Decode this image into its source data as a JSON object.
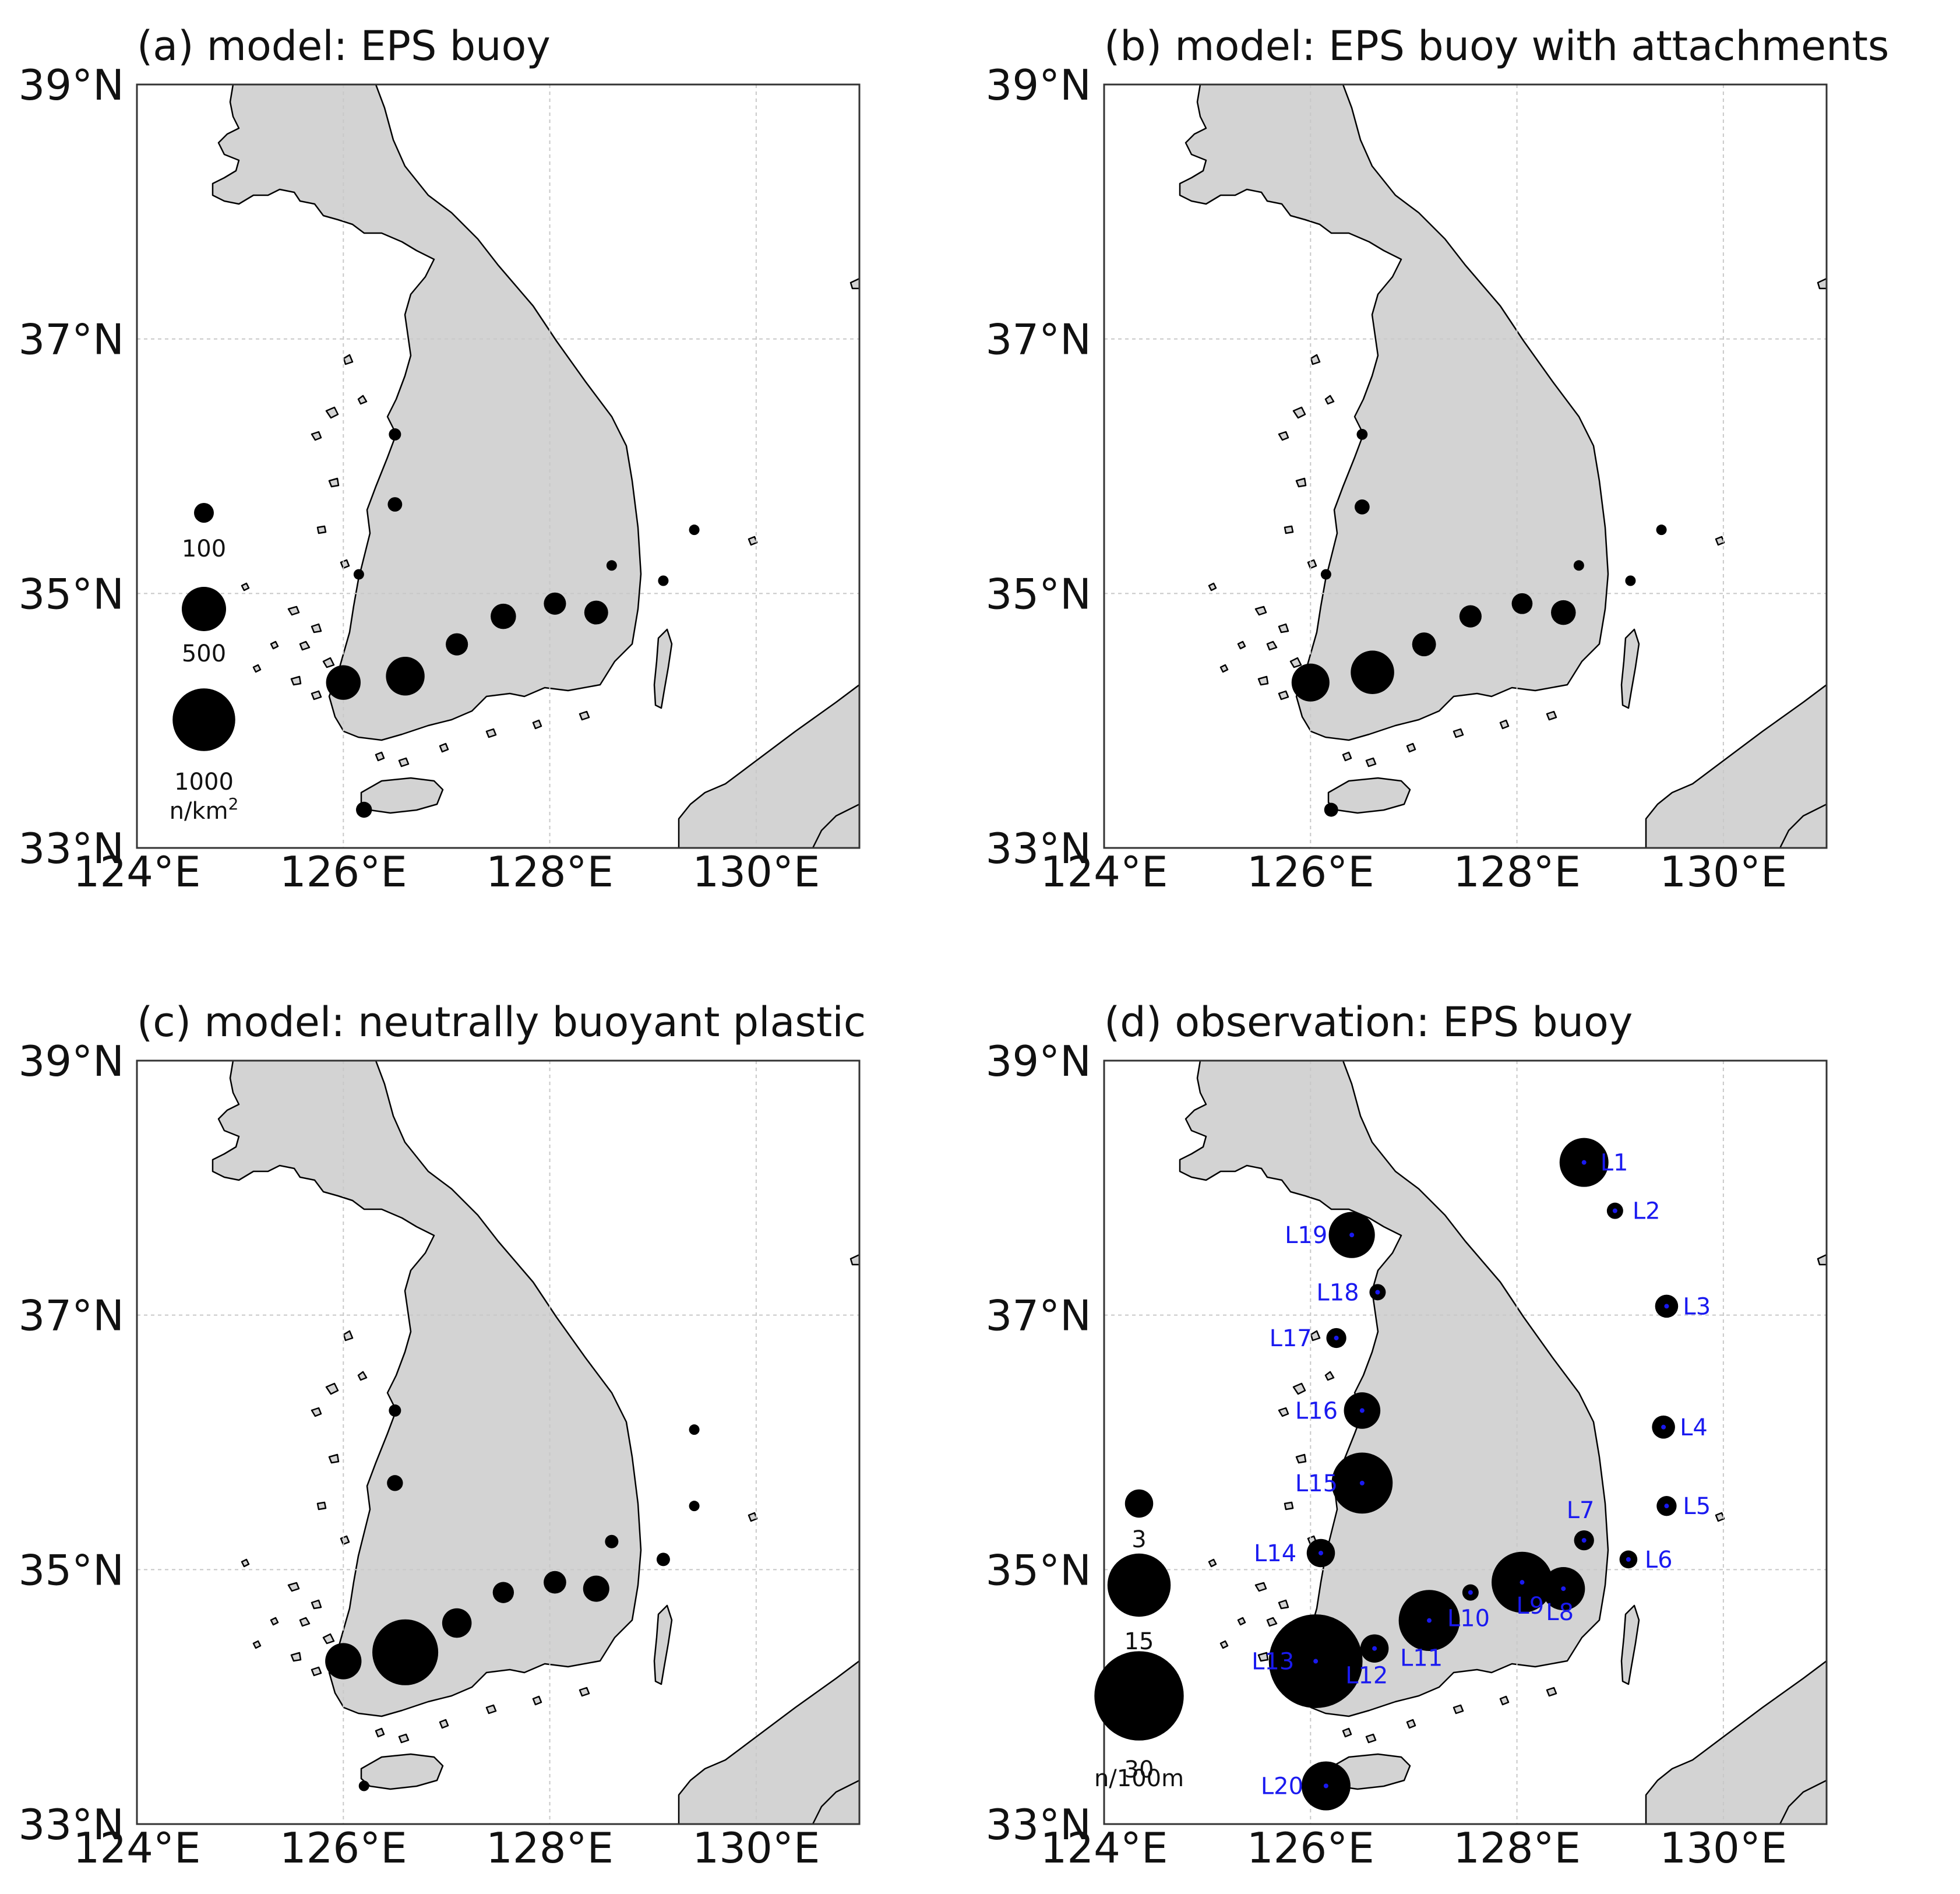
{
  "axes": {
    "lat_ticks": [
      "33°N",
      "35°N",
      "37°N",
      "39°N"
    ],
    "lon_ticks": [
      "124°E",
      "126°E",
      "128°E",
      "130°E"
    ],
    "lat_range": [
      33,
      39
    ],
    "lon_range": [
      124,
      131
    ],
    "grid": "dashed"
  },
  "colors": {
    "land": "#d3d3d3",
    "marker": "#000000",
    "site_label": "#1a1af0",
    "site_dot": "#1a1af0"
  },
  "chart_data": [
    {
      "type": "scatter",
      "panel": "a",
      "title": "(a) model: EPS buoy",
      "legend": {
        "unit": "n/km2",
        "unit_main": "n/km",
        "unit_sup": "2",
        "entries": [
          "100",
          "500",
          "1000"
        ],
        "entry_values": [
          100,
          500,
          1000
        ],
        "placement": "lower-left"
      },
      "points": [
        {
          "lon": 126.5,
          "lat": 36.25,
          "value": 100
        },
        {
          "lon": 126.5,
          "lat": 35.7,
          "value": 140
        },
        {
          "lon": 126.15,
          "lat": 35.15,
          "value": 60
        },
        {
          "lon": 128.6,
          "lat": 35.22,
          "value": 60
        },
        {
          "lon": 129.1,
          "lat": 35.1,
          "value": 30
        },
        {
          "lon": 129.4,
          "lat": 35.5,
          "value": 10
        },
        {
          "lon": 126.2,
          "lat": 33.3,
          "value": 170
        },
        {
          "lon": 126.0,
          "lat": 34.3,
          "value": 800
        },
        {
          "lon": 126.6,
          "lat": 34.35,
          "value": 1000
        },
        {
          "lon": 127.1,
          "lat": 34.6,
          "value": 330
        },
        {
          "lon": 127.55,
          "lat": 34.82,
          "value": 430
        },
        {
          "lon": 128.05,
          "lat": 34.92,
          "value": 330
        },
        {
          "lon": 128.45,
          "lat": 34.85,
          "value": 380
        }
      ]
    },
    {
      "type": "scatter",
      "panel": "b",
      "title": "(b) model: EPS buoy with attachments",
      "points": [
        {
          "lon": 126.5,
          "lat": 36.25,
          "value": 80
        },
        {
          "lon": 126.5,
          "lat": 35.68,
          "value": 150
        },
        {
          "lon": 126.15,
          "lat": 35.15,
          "value": 30
        },
        {
          "lon": 128.6,
          "lat": 35.22,
          "value": 60
        },
        {
          "lon": 129.1,
          "lat": 35.1,
          "value": 40
        },
        {
          "lon": 129.4,
          "lat": 35.5,
          "value": 20
        },
        {
          "lon": 126.2,
          "lat": 33.3,
          "value": 130
        },
        {
          "lon": 126.0,
          "lat": 34.3,
          "value": 960
        },
        {
          "lon": 126.6,
          "lat": 34.38,
          "value": 1260
        },
        {
          "lon": 127.1,
          "lat": 34.6,
          "value": 380
        },
        {
          "lon": 127.55,
          "lat": 34.82,
          "value": 330
        },
        {
          "lon": 128.05,
          "lat": 34.92,
          "value": 290
        },
        {
          "lon": 128.45,
          "lat": 34.85,
          "value": 410
        }
      ]
    },
    {
      "type": "scatter",
      "panel": "c",
      "title": "(c) model: neutrally buoyant plastic",
      "points": [
        {
          "lon": 126.5,
          "lat": 36.25,
          "value": 100
        },
        {
          "lon": 126.5,
          "lat": 35.68,
          "value": 170
        },
        {
          "lon": 129.4,
          "lat": 36.1,
          "value": 15
        },
        {
          "lon": 129.4,
          "lat": 35.5,
          "value": 60
        },
        {
          "lon": 128.6,
          "lat": 35.22,
          "value": 120
        },
        {
          "lon": 129.1,
          "lat": 35.08,
          "value": 120
        },
        {
          "lon": 126.2,
          "lat": 33.3,
          "value": 40
        },
        {
          "lon": 126.0,
          "lat": 34.28,
          "value": 880
        },
        {
          "lon": 126.6,
          "lat": 34.35,
          "value": 2900
        },
        {
          "lon": 127.1,
          "lat": 34.58,
          "value": 580
        },
        {
          "lon": 127.55,
          "lat": 34.82,
          "value": 300
        },
        {
          "lon": 128.05,
          "lat": 34.9,
          "value": 340
        },
        {
          "lon": 128.45,
          "lat": 34.85,
          "value": 460
        }
      ]
    },
    {
      "type": "scatter",
      "panel": "d",
      "title": "(d) observation: EPS buoy",
      "legend": {
        "unit": "n/100m",
        "entries": [
          "3",
          "15",
          "30"
        ],
        "entry_values": [
          3,
          15,
          30
        ],
        "placement": "lower-left"
      },
      "points": [
        {
          "label": "L1",
          "lon": 128.65,
          "lat": 38.2,
          "value": 9
        },
        {
          "label": "L2",
          "lon": 128.95,
          "lat": 37.82,
          "value": 1
        },
        {
          "label": "L3",
          "lon": 129.45,
          "lat": 37.07,
          "value": 2
        },
        {
          "label": "L4",
          "lon": 129.42,
          "lat": 36.12,
          "value": 2
        },
        {
          "label": "L5",
          "lon": 129.45,
          "lat": 35.5,
          "value": 1.5
        },
        {
          "label": "L6",
          "lon": 129.08,
          "lat": 35.08,
          "value": 1.2
        },
        {
          "label": "L7",
          "lon": 128.65,
          "lat": 35.23,
          "value": 1.5
        },
        {
          "label": "L8",
          "lon": 128.45,
          "lat": 34.85,
          "value": 7
        },
        {
          "label": "L9",
          "lon": 128.05,
          "lat": 34.9,
          "value": 14
        },
        {
          "label": "L10",
          "lon": 127.55,
          "lat": 34.82,
          "value": 1
        },
        {
          "label": "L11",
          "lon": 127.15,
          "lat": 34.6,
          "value": 14
        },
        {
          "label": "L12",
          "lon": 126.62,
          "lat": 34.38,
          "value": 3
        },
        {
          "label": "L13",
          "lon": 126.05,
          "lat": 34.28,
          "value": 33
        },
        {
          "label": "L14",
          "lon": 126.1,
          "lat": 35.13,
          "value": 3
        },
        {
          "label": "L15",
          "lon": 126.5,
          "lat": 35.68,
          "value": 14
        },
        {
          "label": "L16",
          "lon": 126.5,
          "lat": 36.25,
          "value": 5
        },
        {
          "label": "L17",
          "lon": 126.25,
          "lat": 36.82,
          "value": 1.5
        },
        {
          "label": "L18",
          "lon": 126.65,
          "lat": 37.18,
          "value": 1
        },
        {
          "label": "L19",
          "lon": 126.4,
          "lat": 37.63,
          "value": 8
        },
        {
          "label": "L20",
          "lon": 126.15,
          "lat": 33.3,
          "value": 9
        }
      ]
    }
  ]
}
